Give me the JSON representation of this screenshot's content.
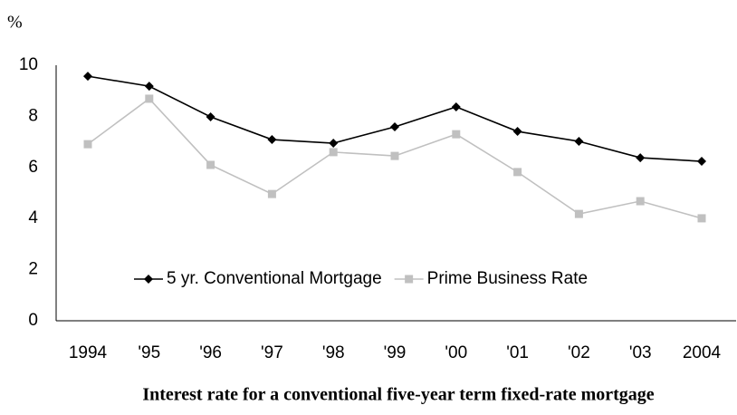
{
  "chart_data": {
    "type": "line",
    "title": "Interest rate for a conventional five-year term fixed-rate mortgage",
    "y_label": "%",
    "categories": [
      "1994",
      "'95",
      "'96",
      "'97",
      "'98",
      "'99",
      "'00",
      "'01",
      "'02",
      "'03",
      "2004"
    ],
    "series": [
      {
        "name": "5 yr. Conventional Mortgage",
        "color": "#000000",
        "marker": "diamond",
        "values": [
          9.57,
          9.18,
          7.98,
          7.09,
          6.95,
          7.59,
          8.37,
          7.41,
          7.02,
          6.38,
          6.24
        ]
      },
      {
        "name": "Prime Business Rate",
        "color": "#c0c0c0",
        "marker": "square",
        "values": [
          6.91,
          8.69,
          6.1,
          4.96,
          6.6,
          6.45,
          7.3,
          5.82,
          4.18,
          4.68,
          4.01
        ]
      }
    ],
    "ylim": [
      0,
      10
    ],
    "yticks": [
      0,
      2,
      4,
      6,
      8,
      10
    ],
    "grid": false
  }
}
